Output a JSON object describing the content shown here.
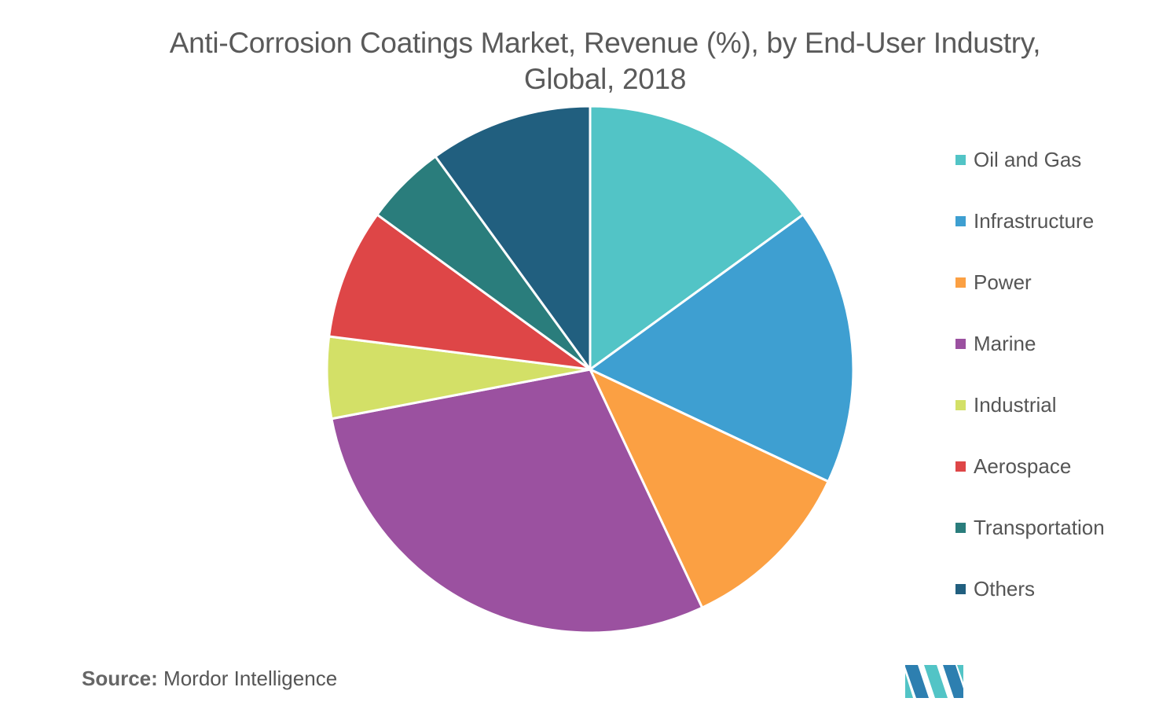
{
  "chart_data": {
    "type": "pie",
    "title": "Anti-Corrosion Coatings Market, Revenue (%), by End-User Industry, Global, 2018",
    "title_lines": [
      "Anti-Corrosion Coatings Market, Revenue (%), by End-User Industry,",
      "Global, 2018"
    ],
    "start_angle": "12 o'clock",
    "direction": "clockwise",
    "legend_position": "right",
    "slices": [
      {
        "label": "Oil and Gas",
        "value": 15,
        "color": "#52c4c6"
      },
      {
        "label": "Infrastructure",
        "value": 17,
        "color": "#3e9fd1"
      },
      {
        "label": "Power",
        "value": 11,
        "color": "#fba043"
      },
      {
        "label": "Marine",
        "value": 29,
        "color": "#9b51a0"
      },
      {
        "label": "Industrial",
        "value": 5,
        "color": "#d3e067"
      },
      {
        "label": "Aerospace",
        "value": 8,
        "color": "#de4647"
      },
      {
        "label": "Transportation",
        "value": 5,
        "color": "#2a7d7c"
      },
      {
        "label": "Others",
        "value": 10,
        "color": "#215f7f"
      }
    ]
  },
  "source": {
    "prefix": "Source:",
    "text": " Mordor Intelligence"
  },
  "logo": {
    "name": "mordor-intelligence-logo",
    "colors": [
      "#2d7fb0",
      "#52c4c6"
    ]
  }
}
